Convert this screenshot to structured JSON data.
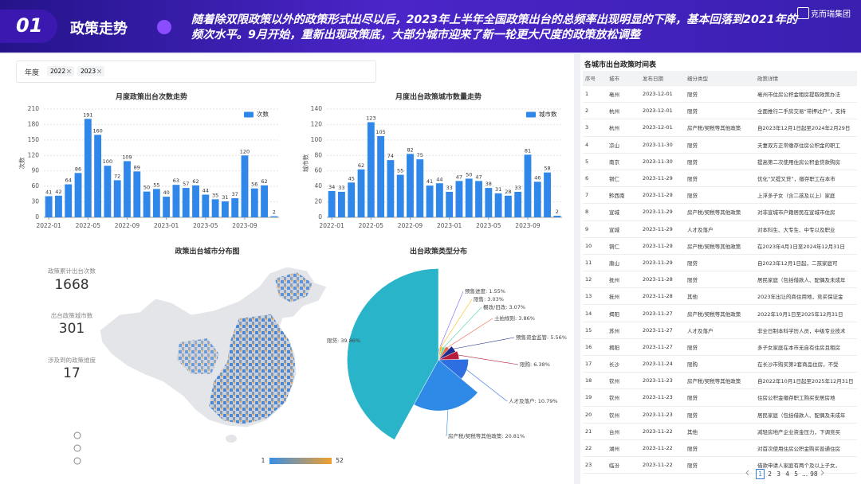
{
  "header": {
    "number": "01",
    "title": "政策走势",
    "description": "随着除双限政策以外的政策形式出尽以后，2023年上半年全国政策出台的总频率出现明显的下降，基本回落到2021年的频次水平。9月开始，重新出现政策底，大部分城市迎来了新一轮更大尺度的政策放松调整",
    "logo": "克而瑞集团"
  },
  "filter": {
    "label": "年度",
    "tags": [
      "2022",
      "2023"
    ]
  },
  "chart_data": [
    {
      "type": "bar",
      "title": "月度政策出台次数走势",
      "y_label": "次数",
      "categories": [
        "2022-01",
        null,
        null,
        null,
        "2022-05",
        null,
        null,
        null,
        "2022-09",
        null,
        null,
        null,
        "2023-01",
        null,
        null,
        null,
        "2023-05",
        null,
        null,
        null,
        "2023-09",
        null,
        null,
        null
      ],
      "series": [
        {
          "name": "次数",
          "color": "#2f88e9",
          "values": [
            41,
            42,
            64,
            86,
            191,
            160,
            100,
            72,
            109,
            89,
            50,
            55,
            40,
            63,
            57,
            62,
            44,
            35,
            31,
            37,
            120,
            56,
            62,
            2
          ]
        }
      ],
      "ylim": [
        0,
        210
      ],
      "yticks": [
        0,
        30,
        60,
        90,
        120,
        150,
        180,
        210
      ],
      "grid": true
    },
    {
      "type": "bar",
      "title": "月度出台政策城市数量走势",
      "y_label": "城市数",
      "categories": [
        "2022-01",
        null,
        null,
        null,
        "2022-05",
        null,
        null,
        null,
        "2022-09",
        null,
        null,
        null,
        "2023-01",
        null,
        null,
        null,
        "2023-05",
        null,
        null,
        null,
        "2023-09",
        null,
        null,
        null
      ],
      "series": [
        {
          "name": "城市数",
          "color": "#2f88e9",
          "values": [
            34,
            33,
            45,
            62,
            123,
            105,
            74,
            55,
            82,
            75,
            41,
            44,
            33,
            47,
            50,
            47,
            38,
            31,
            28,
            33,
            81,
            46,
            58,
            2
          ]
        }
      ],
      "ylim": [
        0,
        140
      ],
      "yticks": [
        0,
        20,
        40,
        60,
        80,
        100,
        120,
        140
      ],
      "grid": true
    },
    {
      "type": "pie",
      "title": "出台政策类型分布",
      "values": [
        1.55,
        3.03,
        3.07,
        3.86,
        5.56,
        6.38,
        10.79,
        20.81,
        39.86
      ],
      "value_labels": [
        "预售进度: 1.55%",
        "限售: 3.03%",
        "棚改/旧改: 3.07%",
        "土拍规则: 3.86%",
        "预售资金监管: 5.56%",
        "限购: 6.38%",
        "人才及落户: 10.79%",
        "房产税/契税等其他政策: 20.81%",
        "限贷: 39.86%"
      ],
      "colors": [
        "#7b61ff",
        "#f6bd16",
        "#5ad8a6",
        "#e8684a",
        "#1c2f8a",
        "#b71c3a",
        "#2d6fe0",
        "#2e8ae6",
        "#2ab4c9"
      ]
    }
  ],
  "map": {
    "title": "政策出台城市分布图",
    "stats": [
      {
        "label": "政策累计出台次数",
        "value": 1668
      },
      {
        "label": "出台政策城市数",
        "value": 301
      },
      {
        "label": "涉及到的政策维度",
        "value": 17
      }
    ],
    "legend": {
      "min": 1,
      "max": 52
    }
  },
  "table": {
    "title": "各城市出台政策时间表",
    "columns": [
      "序号",
      "城市",
      "发布日期",
      "细分类型",
      "政策详情"
    ],
    "rows": [
      [
        1,
        "亳州",
        "2023-12-01",
        "限贷",
        "亳州市住房公积金租房提取政策办法"
      ],
      [
        2,
        "杭州",
        "2023-12-01",
        "限贷",
        "全面推行二手房交易“带押过户”，支持"
      ],
      [
        3,
        "杭州",
        "2023-12-01",
        "房产税/契税等其他政策",
        "自2023年12月1日起至2024年2月29日"
      ],
      [
        4,
        "凉山",
        "2023-11-30",
        "限贷",
        "夫妻双方正常缴存住房公积金的职工"
      ],
      [
        5,
        "南京",
        "2023-11-30",
        "限贷",
        "提高第二次使用住房公积金贷款购房"
      ],
      [
        6,
        "铜仁",
        "2023-11-29",
        "限贷",
        "优化“又提又贷”，缴存职工在本市"
      ],
      [
        7,
        "黔西南",
        "2023-11-29",
        "限贷",
        "上浮多子女（含二孩及以上）家庭"
      ],
      [
        8,
        "宣城",
        "2023-11-29",
        "房产税/契税等其他政策",
        "对非宣城市户籍居民在宣城市住房"
      ],
      [
        9,
        "宣城",
        "2023-11-29",
        "人才及落户",
        "对本科生、大专生、中专以及职业"
      ],
      [
        10,
        "铜仁",
        "2023-11-29",
        "房产税/契税等其他政策",
        "在2023年4月1日至2024年12月31日"
      ],
      [
        11,
        "唐山",
        "2023-11-29",
        "限贷",
        "自2023年12月1日起，二孩家庭可"
      ],
      [
        12,
        "抚州",
        "2023-11-28",
        "限贷",
        "居民家庭（包括借款人、配偶及未成年"
      ],
      [
        13,
        "抚州",
        "2023-11-28",
        "其他",
        "2023年出让的商住用地，竞买保证金"
      ],
      [
        14,
        "揭阳",
        "2023-11-27",
        "房产税/契税等其他政策",
        "2022年10月1日至2025年12月31日"
      ],
      [
        15,
        "苏州",
        "2023-11-27",
        "人才及落户",
        "非全日制本科学历人员，中级专业技术"
      ],
      [
        16,
        "揭阳",
        "2023-11-27",
        "限贷",
        "多子女家庭在本市无自有住房且租房"
      ],
      [
        17,
        "长沙",
        "2023-11-24",
        "限购",
        "在长沙市购买第2套商品住房，不受"
      ],
      [
        18,
        "钦州",
        "2023-11-23",
        "房产税/契税等其他政策",
        "自2022年10月1日起至2025年12月31日"
      ],
      [
        19,
        "钦州",
        "2023-11-23",
        "限贷",
        "住房公积金缴存职工购买安居房地"
      ],
      [
        20,
        "钦州",
        "2023-11-23",
        "限贷",
        "居民家庭（包括借款人、配偶及未成年"
      ],
      [
        21,
        "台州",
        "2023-11-22",
        "其他",
        "减轻房地产企业资金压力，下调竞买"
      ],
      [
        22,
        "湖州",
        "2023-11-22",
        "限贷",
        "对首次使用住房公积金购买普通住房"
      ],
      [
        23,
        "临汾",
        "2023-11-22",
        "限贷",
        "借款申请人家庭有两个及以上子女，"
      ]
    ],
    "pages": [
      "1",
      "2",
      "3",
      "4",
      "5",
      "...",
      "98"
    ]
  }
}
